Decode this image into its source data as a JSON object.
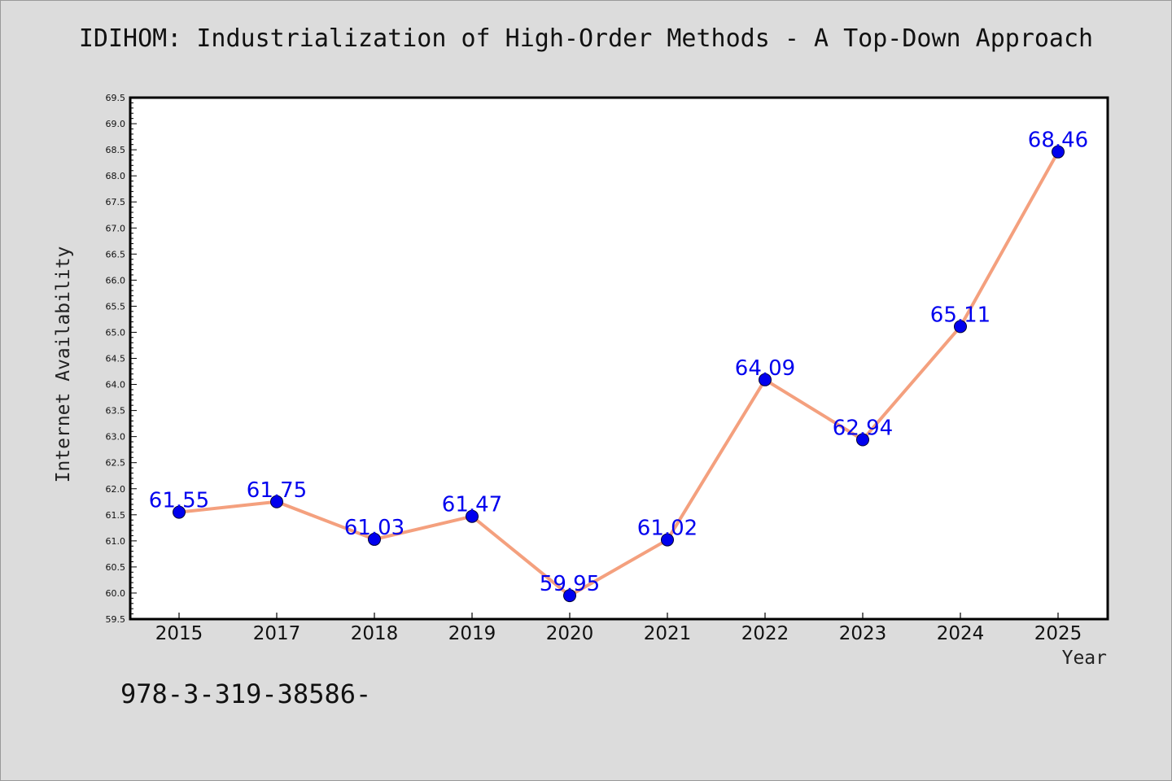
{
  "chart": {
    "title": "IDIHOM: Industrialization of High-Order Methods - A Top-Down Approach",
    "footnote": "978-3-319-38586-"
  },
  "chart_data": {
    "type": "line",
    "title": "IDIHOM: Industrialization of High-Order Methods - A Top-Down Approach",
    "xlabel": "Year",
    "ylabel": "Internet Availability",
    "categories": [
      "2015",
      "2017",
      "2018",
      "2019",
      "2020",
      "2021",
      "2022",
      "2023",
      "2024",
      "2025"
    ],
    "values": [
      61.55,
      61.75,
      61.03,
      61.47,
      59.95,
      61.02,
      64.09,
      62.94,
      65.11,
      68.46
    ],
    "ylim": [
      59.5,
      69.5
    ],
    "ytick_step": 0.5,
    "grid": false,
    "legend": "none",
    "line_color": "#f4a07e",
    "marker_color": "#0000ee",
    "label_color": "#0000ee"
  }
}
